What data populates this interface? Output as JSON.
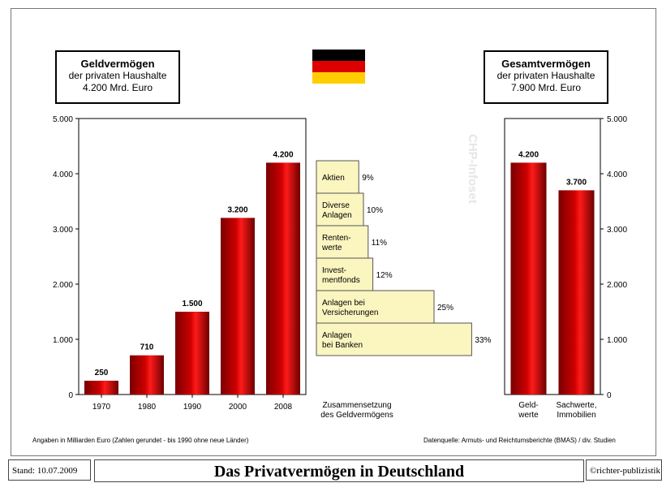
{
  "left_box": {
    "title": "Geldvermögen",
    "line2": "der privaten Haushalte",
    "line3": "4.200 Mrd. Euro"
  },
  "right_box": {
    "title": "Gesamtvermögen",
    "line2": "der privaten Haushalte",
    "line3": "7.900 Mrd. Euro"
  },
  "watermark": "CHP-Infoset",
  "notes": {
    "left": "Angaben in Milliarden Euro (Zahlen gerundet - bis 1990 ohne neue Länder)",
    "right": "Datenquelle: Armuts- und Reichtumsberichte (BMAS) / div. Studien"
  },
  "footer": {
    "stand": "Stand: 10.07.2009",
    "title": "Das Privatvermögen in Deutschland",
    "copyright": "©richter-publizistik"
  },
  "colors": {
    "bar_red": "#cc0000",
    "composition_fill": "#fbf5c0",
    "flag_black": "#000000",
    "flag_red": "#dd0000",
    "flag_gold": "#ffce00"
  },
  "chart_data": [
    {
      "type": "bar",
      "categories": [
        "1970",
        "1980",
        "1990",
        "2000",
        "2008"
      ],
      "values": [
        250,
        710,
        1500,
        3200,
        4200
      ],
      "value_labels": [
        "250",
        "710",
        "1.500",
        "3.200",
        "4.200"
      ],
      "ylim": [
        0,
        5000
      ],
      "yticks": [
        "0",
        "1.000",
        "2.000",
        "3.000",
        "4.000",
        "5.000"
      ],
      "grid": false
    },
    {
      "type": "bar",
      "orientation": "horizontal",
      "xlabel": "Zusammensetzung des Geldvermögens",
      "categories": [
        [
          "Aktien"
        ],
        [
          "Diverse",
          "Anlagen"
        ],
        [
          "Renten-",
          "werte"
        ],
        [
          "Invest-",
          "mentfonds"
        ],
        [
          "Anlagen bei",
          "Versicherungen"
        ],
        [
          "Anlagen",
          "bei Banken"
        ]
      ],
      "values": [
        9,
        10,
        11,
        12,
        25,
        33
      ],
      "value_labels": [
        "9%",
        "10%",
        "11%",
        "12%",
        "25%",
        "33%"
      ]
    },
    {
      "type": "bar",
      "categories": [
        [
          "Geld-",
          "werte"
        ],
        [
          "Sachwerte,",
          "Immobilien"
        ]
      ],
      "values": [
        4200,
        3700
      ],
      "value_labels": [
        "4.200",
        "3.700"
      ],
      "ylim": [
        0,
        5000
      ],
      "yticks": [
        "0",
        "1.000",
        "2.000",
        "3.000",
        "4.000",
        "5.000"
      ],
      "grid": false
    }
  ]
}
